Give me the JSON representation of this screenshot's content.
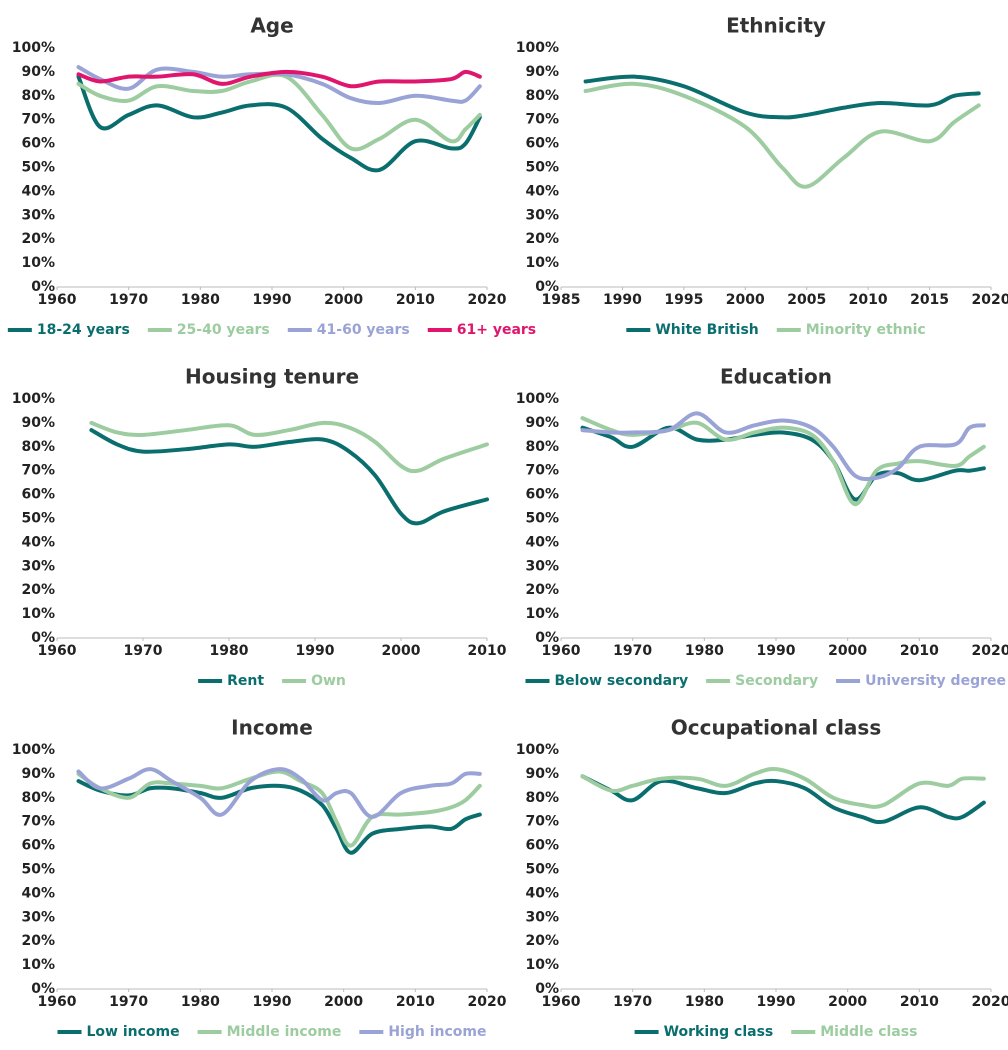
{
  "chart_data": [
    {
      "type": "line",
      "title": "Age",
      "xlim": [
        1960,
        2020
      ],
      "xticks": [
        1960,
        1970,
        1980,
        1990,
        2000,
        2010,
        2020
      ],
      "ylim": [
        0,
        100
      ],
      "yticks": [
        {
          "value": 0,
          "label": "0%"
        },
        {
          "value": 10,
          "label": "10%"
        },
        {
          "value": 20,
          "label": "20%"
        },
        {
          "value": 30,
          "label": "30%"
        },
        {
          "value": 40,
          "label": "40%"
        },
        {
          "value": 50,
          "label": "50%"
        },
        {
          "value": 60,
          "label": "60%"
        },
        {
          "value": 70,
          "label": "70%"
        },
        {
          "value": 80,
          "label": "80%"
        },
        {
          "value": 90,
          "label": "90%"
        },
        {
          "value": 100,
          "label": "100%"
        }
      ],
      "legend": "bottom",
      "x": [
        1963,
        1966,
        1970,
        1974,
        1979,
        1983,
        1987,
        1992,
        1997,
        2001,
        2005,
        2010,
        2015,
        2017,
        2019
      ],
      "series": [
        {
          "name": "18-24 years",
          "color": "#0b6e6e",
          "values": [
            88,
            67,
            72,
            76,
            71,
            73,
            76,
            75,
            62,
            54,
            49,
            61,
            58,
            60,
            71
          ]
        },
        {
          "name": "25-40 years",
          "color": "#9ccc9f",
          "values": [
            85,
            80,
            78,
            84,
            82,
            82,
            86,
            88,
            72,
            58,
            62,
            70,
            61,
            66,
            72
          ]
        },
        {
          "name": "41-60 years",
          "color": "#9aa3d6",
          "values": [
            92,
            87,
            83,
            91,
            90,
            88,
            89,
            89,
            85,
            79,
            77,
            80,
            78,
            78,
            84
          ]
        },
        {
          "name": "61+ years",
          "color": "#e0156e",
          "values": [
            89,
            86,
            88,
            88,
            89,
            85,
            88,
            90,
            88,
            84,
            86,
            86,
            87,
            90,
            88
          ]
        }
      ]
    },
    {
      "type": "line",
      "title": "Ethnicity",
      "xlim": [
        1985,
        2020
      ],
      "xticks": [
        1985,
        1990,
        1995,
        2000,
        2005,
        2010,
        2015,
        2020
      ],
      "ylim": [
        0,
        100
      ],
      "yticks": [
        {
          "value": 0,
          "label": "0%"
        },
        {
          "value": 10,
          "label": "10%"
        },
        {
          "value": 20,
          "label": "20%"
        },
        {
          "value": 30,
          "label": "30%"
        },
        {
          "value": 40,
          "label": "40%"
        },
        {
          "value": 50,
          "label": "50%"
        },
        {
          "value": 60,
          "label": "60%"
        },
        {
          "value": 70,
          "label": "70%"
        },
        {
          "value": 80,
          "label": "80%"
        },
        {
          "value": 90,
          "label": "90%"
        },
        {
          "value": 100,
          "label": "100%"
        }
      ],
      "legend": "bottom",
      "x": [
        1987,
        1991,
        1995,
        2000,
        2003,
        2005,
        2008,
        2011,
        2015,
        2017,
        2019
      ],
      "series": [
        {
          "name": "White British",
          "color": "#0b6e6e",
          "values": [
            86,
            88,
            84,
            73,
            71,
            72,
            75,
            77,
            76,
            80,
            81
          ]
        },
        {
          "name": "Minority ethnic",
          "color": "#9ccc9f",
          "values": [
            82,
            85,
            80,
            67,
            50,
            42,
            54,
            65,
            61,
            69,
            76
          ]
        }
      ]
    },
    {
      "type": "line",
      "title": "Housing tenure",
      "xlim": [
        1960,
        2010
      ],
      "xticks": [
        1960,
        1970,
        1980,
        1990,
        2000,
        2010
      ],
      "ylim": [
        0,
        100
      ],
      "yticks": [
        {
          "value": 0,
          "label": "0%"
        },
        {
          "value": 10,
          "label": "10%"
        },
        {
          "value": 20,
          "label": "20%"
        },
        {
          "value": 30,
          "label": "30%"
        },
        {
          "value": 40,
          "label": "40%"
        },
        {
          "value": 50,
          "label": "50%"
        },
        {
          "value": 60,
          "label": "60%"
        },
        {
          "value": 70,
          "label": "70%"
        },
        {
          "value": 80,
          "label": "80%"
        },
        {
          "value": 90,
          "label": "90%"
        },
        {
          "value": 100,
          "label": "100%"
        }
      ],
      "legend": "bottom",
      "x": [
        1964,
        1967,
        1970,
        1975,
        1980,
        1983,
        1987,
        1991,
        1994,
        1997,
        2000,
        2002,
        2005,
        2010
      ],
      "series": [
        {
          "name": "Rent",
          "color": "#0b6e6e",
          "values": [
            87,
            81,
            78,
            79,
            81,
            80,
            82,
            83,
            78,
            68,
            52,
            48,
            53,
            58
          ]
        },
        {
          "name": "Own",
          "color": "#9ccc9f",
          "values": [
            90,
            86,
            85,
            87,
            89,
            85,
            87,
            90,
            88,
            82,
            72,
            70,
            75,
            81
          ]
        }
      ]
    },
    {
      "type": "line",
      "title": "Education",
      "xlim": [
        1960,
        2020
      ],
      "xticks": [
        1960,
        1970,
        1980,
        1990,
        2000,
        2010,
        2020
      ],
      "ylim": [
        0,
        100
      ],
      "yticks": [
        {
          "value": 0,
          "label": "0%"
        },
        {
          "value": 10,
          "label": "10%"
        },
        {
          "value": 20,
          "label": "20%"
        },
        {
          "value": 30,
          "label": "30%"
        },
        {
          "value": 40,
          "label": "40%"
        },
        {
          "value": 50,
          "label": "50%"
        },
        {
          "value": 60,
          "label": "60%"
        },
        {
          "value": 70,
          "label": "70%"
        },
        {
          "value": 80,
          "label": "80%"
        },
        {
          "value": 90,
          "label": "90%"
        },
        {
          "value": 100,
          "label": "100%"
        }
      ],
      "legend": "bottom",
      "x": [
        1963,
        1967,
        1970,
        1975,
        1979,
        1983,
        1987,
        1991,
        1995,
        1998,
        2001,
        2004,
        2007,
        2010,
        2015,
        2017,
        2019
      ],
      "series": [
        {
          "name": "Below secondary",
          "color": "#0b6e6e",
          "values": [
            88,
            84,
            80,
            88,
            83,
            83,
            85,
            86,
            83,
            74,
            58,
            68,
            69,
            66,
            70,
            70,
            71
          ]
        },
        {
          "name": "Secondary",
          "color": "#9ccc9f",
          "values": [
            92,
            87,
            85,
            87,
            90,
            83,
            86,
            88,
            85,
            74,
            56,
            70,
            73,
            74,
            72,
            76,
            80
          ]
        },
        {
          "name": "University degree",
          "color": "#9aa3d6",
          "values": [
            87,
            86,
            86,
            87,
            94,
            86,
            89,
            91,
            88,
            80,
            68,
            67,
            71,
            80,
            81,
            88,
            89
          ]
        }
      ]
    },
    {
      "type": "line",
      "title": "Income",
      "xlim": [
        1960,
        2020
      ],
      "xticks": [
        1960,
        1970,
        1980,
        1990,
        2000,
        2010,
        2020
      ],
      "ylim": [
        0,
        100
      ],
      "yticks": [
        {
          "value": 0,
          "label": "0%"
        },
        {
          "value": 10,
          "label": "10%"
        },
        {
          "value": 20,
          "label": "20%"
        },
        {
          "value": 30,
          "label": "30%"
        },
        {
          "value": 40,
          "label": "40%"
        },
        {
          "value": 50,
          "label": "50%"
        },
        {
          "value": 60,
          "label": "60%"
        },
        {
          "value": 70,
          "label": "70%"
        },
        {
          "value": 80,
          "label": "80%"
        },
        {
          "value": 90,
          "label": "90%"
        },
        {
          "value": 100,
          "label": "100%"
        }
      ],
      "legend": "bottom",
      "x": [
        1963,
        1966,
        1970,
        1973,
        1976,
        1980,
        1983,
        1987,
        1991,
        1994,
        1997,
        1999,
        2001,
        2004,
        2008,
        2012,
        2015,
        2017,
        2019
      ],
      "series": [
        {
          "name": "Low income",
          "color": "#0b6e6e",
          "values": [
            87,
            83,
            81,
            84,
            84,
            82,
            80,
            84,
            85,
            83,
            77,
            67,
            57,
            65,
            67,
            68,
            67,
            71,
            73
          ]
        },
        {
          "name": "Middle income",
          "color": "#9ccc9f",
          "values": [
            90,
            84,
            80,
            86,
            86,
            85,
            84,
            88,
            91,
            87,
            82,
            70,
            60,
            72,
            73,
            74,
            76,
            79,
            85
          ]
        },
        {
          "name": "High income",
          "color": "#9aa3d6",
          "values": [
            91,
            84,
            88,
            92,
            87,
            80,
            73,
            87,
            92,
            88,
            79,
            82,
            82,
            72,
            82,
            85,
            86,
            90,
            90
          ]
        }
      ]
    },
    {
      "type": "line",
      "title": "Occupational class",
      "xlim": [
        1960,
        2020
      ],
      "xticks": [
        1960,
        1970,
        1980,
        1990,
        2000,
        2010,
        2020
      ],
      "ylim": [
        0,
        100
      ],
      "yticks": [
        {
          "value": 0,
          "label": "0%"
        },
        {
          "value": 10,
          "label": "10%"
        },
        {
          "value": 20,
          "label": "20%"
        },
        {
          "value": 30,
          "label": "30%"
        },
        {
          "value": 40,
          "label": "40%"
        },
        {
          "value": 50,
          "label": "50%"
        },
        {
          "value": 60,
          "label": "60%"
        },
        {
          "value": 70,
          "label": "70%"
        },
        {
          "value": 80,
          "label": "80%"
        },
        {
          "value": 90,
          "label": "90%"
        },
        {
          "value": 100,
          "label": "100%"
        }
      ],
      "legend": "bottom",
      "x": [
        1963,
        1967,
        1970,
        1974,
        1979,
        1983,
        1987,
        1990,
        1994,
        1998,
        2002,
        2005,
        2010,
        2014,
        2016,
        2019
      ],
      "series": [
        {
          "name": "Working class",
          "color": "#0b6e6e",
          "values": [
            89,
            83,
            79,
            87,
            84,
            82,
            86,
            87,
            84,
            76,
            72,
            70,
            76,
            72,
            72,
            78
          ]
        },
        {
          "name": "Middle class",
          "color": "#9ccc9f",
          "values": [
            89,
            83,
            85,
            88,
            88,
            85,
            90,
            92,
            88,
            80,
            77,
            77,
            86,
            85,
            88,
            88
          ]
        }
      ]
    }
  ]
}
